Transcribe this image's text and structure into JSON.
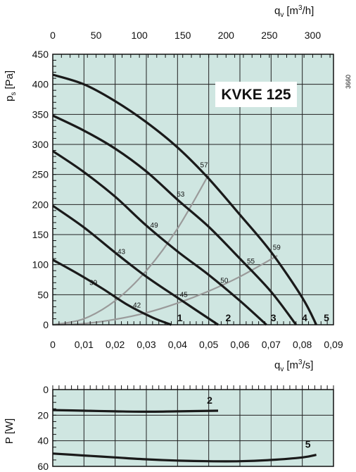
{
  "chart_data": [
    {
      "type": "line",
      "title": "KVKE 125",
      "code": "3660",
      "ylabel": "p",
      "ylabel_sub": "s",
      "ylabel_unit": "[Pa]",
      "xlabel": "q",
      "xlabel_sub": "v",
      "xlabel_unit_pre": "[m",
      "xlabel_unit_sup": "3",
      "xlabel_unit_post": "/s]",
      "x2label": "q",
      "x2label_sub": "v",
      "x2label_unit_pre": "[m",
      "x2label_unit_sup": "3",
      "x2label_unit_post": "/h]",
      "xlim": [
        0,
        0.09
      ],
      "ylim": [
        0,
        450
      ],
      "x2lim": [
        0,
        324
      ],
      "x_ticks": [
        "0",
        "0,01",
        "0,02",
        "0,03",
        "0,04",
        "0,05",
        "0,06",
        "0,07",
        "0,08",
        "0,09"
      ],
      "y_ticks": [
        "0",
        "50",
        "100",
        "150",
        "200",
        "250",
        "300",
        "350",
        "400",
        "450"
      ],
      "x2_ticks": [
        "0",
        "50",
        "100",
        "150",
        "200",
        "250",
        "300"
      ],
      "grid": true,
      "background": "#cfe6e1",
      "series": [
        {
          "name": "1",
          "color": "#1a1a1a",
          "x": [
            0,
            0.008,
            0.016,
            0.024,
            0.032,
            0.038
          ],
          "y": [
            108,
            85,
            60,
            33,
            12,
            0
          ]
        },
        {
          "name": "2",
          "color": "#1a1a1a",
          "x": [
            0,
            0.01,
            0.02,
            0.03,
            0.04,
            0.053
          ],
          "y": [
            198,
            162,
            120,
            80,
            45,
            0
          ]
        },
        {
          "name": "3",
          "color": "#1a1a1a",
          "x": [
            0,
            0.01,
            0.02,
            0.03,
            0.04,
            0.05,
            0.06,
            0.0685
          ],
          "y": [
            289,
            254,
            213,
            165,
            122,
            83,
            40,
            0
          ]
        },
        {
          "name": "4",
          "color": "#1a1a1a",
          "x": [
            0,
            0.01,
            0.02,
            0.03,
            0.04,
            0.05,
            0.06,
            0.07,
            0.078
          ],
          "y": [
            348,
            323,
            293,
            255,
            208,
            163,
            110,
            55,
            0
          ]
        },
        {
          "name": "5",
          "color": "#1a1a1a",
          "x": [
            0,
            0.01,
            0.02,
            0.03,
            0.04,
            0.05,
            0.06,
            0.07,
            0.08,
            0.0845
          ],
          "y": [
            416,
            400,
            372,
            337,
            295,
            243,
            183,
            121,
            45,
            0
          ]
        }
      ],
      "system_curves": [
        {
          "color": "#9a9a9a",
          "x": [
            0,
            0.01,
            0.02,
            0.03,
            0.04,
            0.05
          ],
          "y": [
            0,
            10,
            40,
            90,
            160,
            250
          ]
        },
        {
          "color": "#9a9a9a",
          "x": [
            0,
            0.01,
            0.02,
            0.03,
            0.04,
            0.05,
            0.06,
            0.072
          ],
          "y": [
            0,
            2,
            9,
            20,
            36,
            56,
            80,
            115
          ]
        }
      ],
      "efficiency_labels": [
        {
          "text": "39",
          "x": 0.013,
          "y": 66
        },
        {
          "text": "42",
          "x": 0.027,
          "y": 29
        },
        {
          "text": "43",
          "x": 0.022,
          "y": 118
        },
        {
          "text": "45",
          "x": 0.042,
          "y": 46
        },
        {
          "text": "49",
          "x": 0.0325,
          "y": 162
        },
        {
          "text": "50",
          "x": 0.055,
          "y": 70
        },
        {
          "text": "53",
          "x": 0.041,
          "y": 213
        },
        {
          "text": "55",
          "x": 0.0635,
          "y": 102
        },
        {
          "text": "57",
          "x": 0.0485,
          "y": 262
        },
        {
          "text": "59",
          "x": 0.0718,
          "y": 125
        }
      ],
      "curve_end_labels": [
        {
          "text": "1",
          "x": 0.0385
        },
        {
          "text": "2",
          "x": 0.054
        },
        {
          "text": "3",
          "x": 0.0685
        },
        {
          "text": "4",
          "x": 0.0785
        },
        {
          "text": "5",
          "x": 0.0855
        }
      ]
    },
    {
      "type": "line",
      "ylabel": "P [W]",
      "xlim": [
        0,
        0.09
      ],
      "ylim": [
        0,
        60
      ],
      "y_inverted": true,
      "y_ticks": [
        "0",
        "20",
        "40",
        "60"
      ],
      "grid": true,
      "background": "#cfe6e1",
      "series": [
        {
          "name": "2",
          "color": "#1a1a1a",
          "x": [
            0,
            0.01,
            0.02,
            0.03,
            0.04,
            0.053
          ],
          "y": [
            16,
            16.5,
            17,
            17.3,
            17,
            16.5
          ]
        },
        {
          "name": "5",
          "color": "#1a1a1a",
          "x": [
            0,
            0.01,
            0.02,
            0.03,
            0.04,
            0.05,
            0.06,
            0.07,
            0.08,
            0.0845
          ],
          "y": [
            50,
            51.5,
            53,
            54.5,
            55.5,
            56,
            56,
            55,
            53,
            51
          ]
        }
      ]
    }
  ]
}
